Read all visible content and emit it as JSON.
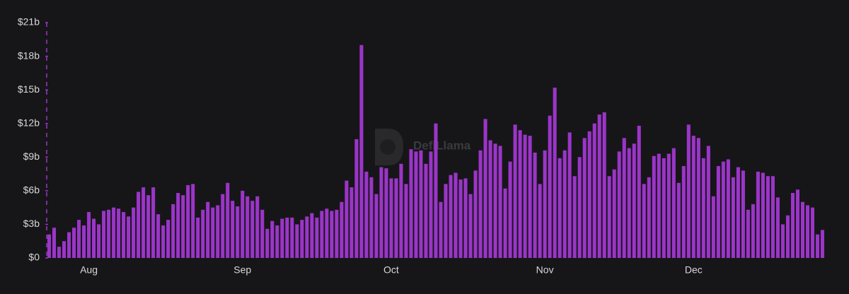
{
  "chart_data": {
    "type": "bar",
    "watermark": "DefiLlama",
    "color": "#9b35c8",
    "ylim": [
      0,
      21
    ],
    "yticks": [
      {
        "value": 0,
        "label": "$0"
      },
      {
        "value": 3,
        "label": "$3b"
      },
      {
        "value": 6,
        "label": "$6b"
      },
      {
        "value": 9,
        "label": "$9b"
      },
      {
        "value": 12,
        "label": "$12b"
      },
      {
        "value": 15,
        "label": "$15b"
      },
      {
        "value": 18,
        "label": "$18b"
      },
      {
        "value": 21,
        "label": "$21b"
      }
    ],
    "categories": [
      null,
      null,
      null,
      null,
      null,
      null,
      null,
      null,
      "Aug",
      null,
      null,
      null,
      null,
      null,
      null,
      null,
      null,
      null,
      null,
      null,
      null,
      null,
      null,
      null,
      null,
      null,
      null,
      null,
      null,
      null,
      null,
      null,
      null,
      null,
      null,
      null,
      null,
      null,
      null,
      "Sep",
      null,
      null,
      null,
      null,
      null,
      null,
      null,
      null,
      null,
      null,
      null,
      null,
      null,
      null,
      null,
      null,
      null,
      null,
      null,
      null,
      null,
      null,
      null,
      null,
      null,
      null,
      null,
      null,
      null,
      "Oct",
      null,
      null,
      null,
      null,
      null,
      null,
      null,
      null,
      null,
      null,
      null,
      null,
      null,
      null,
      null,
      null,
      null,
      null,
      null,
      null,
      null,
      null,
      null,
      null,
      null,
      null,
      null,
      null,
      null,
      null,
      "Nov",
      null,
      null,
      null,
      null,
      null,
      null,
      null,
      null,
      null,
      null,
      null,
      null,
      null,
      null,
      null,
      null,
      null,
      null,
      null,
      null,
      null,
      null,
      null,
      null,
      null,
      null,
      null,
      null,
      null,
      "Dec",
      null,
      null,
      null,
      null,
      null,
      null,
      null,
      null,
      null,
      null,
      null,
      null,
      null,
      null,
      null,
      null,
      null,
      null,
      null,
      null,
      null,
      null,
      null,
      null,
      null,
      null
    ],
    "values": [
      2.1,
      2.7,
      1.0,
      1.5,
      2.3,
      2.7,
      3.4,
      2.9,
      4.1,
      3.5,
      3.0,
      4.2,
      4.3,
      4.5,
      4.4,
      4.1,
      3.7,
      4.5,
      5.9,
      6.3,
      5.6,
      6.3,
      3.9,
      2.9,
      3.4,
      4.8,
      5.8,
      5.6,
      6.5,
      6.6,
      3.6,
      4.3,
      5.0,
      4.5,
      4.7,
      5.7,
      6.7,
      5.1,
      4.6,
      6.0,
      5.5,
      5.1,
      5.5,
      4.3,
      2.6,
      3.3,
      2.9,
      3.5,
      3.6,
      3.6,
      3.0,
      3.4,
      3.7,
      4.0,
      3.6,
      4.2,
      4.4,
      4.2,
      4.3,
      5.0,
      6.9,
      6.3,
      10.6,
      19.0,
      7.7,
      7.2,
      5.7,
      8.1,
      8.0,
      7.1,
      7.1,
      8.4,
      6.6,
      9.7,
      9.5,
      9.6,
      8.4,
      9.5,
      12.0,
      5.0,
      6.6,
      7.4,
      7.6,
      7.0,
      7.1,
      5.7,
      7.8,
      9.6,
      12.4,
      10.5,
      10.2,
      10.0,
      6.2,
      8.6,
      11.9,
      11.4,
      11.0,
      10.9,
      9.4,
      6.6,
      9.6,
      12.7,
      15.2,
      8.9,
      9.6,
      11.2,
      7.3,
      9.0,
      10.7,
      11.3,
      12.0,
      12.8,
      13.0,
      7.3,
      7.9,
      9.5,
      10.7,
      9.8,
      10.2,
      11.8,
      6.6,
      7.2,
      9.1,
      9.3,
      8.9,
      9.3,
      9.8,
      6.7,
      8.2,
      11.9,
      10.9,
      10.7,
      8.9,
      10.0,
      5.5,
      8.2,
      8.6,
      8.8,
      7.2,
      8.1,
      7.8,
      4.3,
      4.8,
      7.7,
      7.6,
      7.3,
      7.3,
      5.4,
      3.0,
      3.8,
      5.8,
      6.1,
      5.0,
      4.7,
      4.5,
      2.1,
      2.5
    ]
  }
}
